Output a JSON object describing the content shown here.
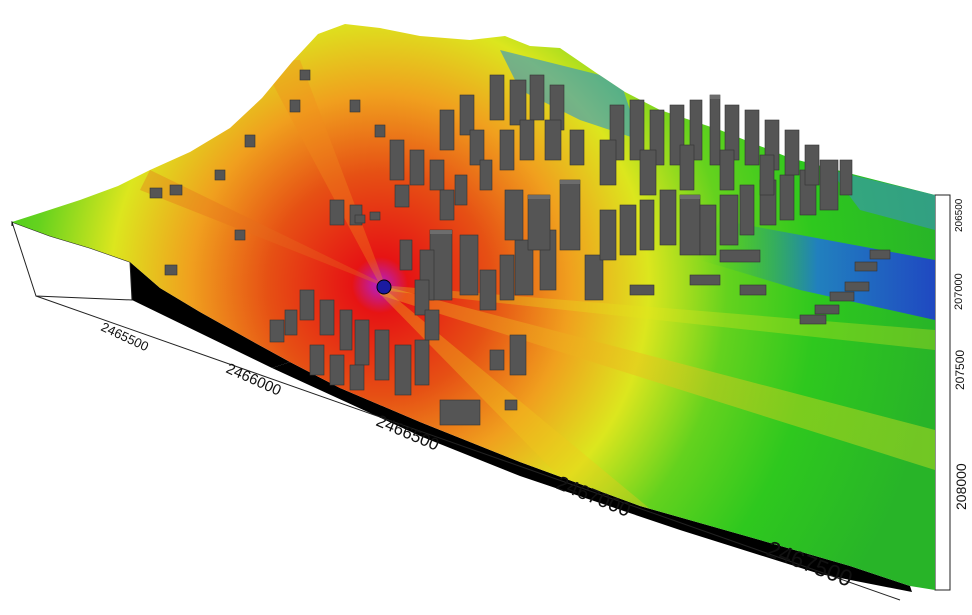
{
  "x_axis": {
    "tick_labels": [
      "2465500",
      "2466000",
      "2466500",
      "2467000",
      "2467500"
    ]
  },
  "y_axis": {
    "tick_labels": [
      "206500",
      "207000",
      "207500",
      "208000"
    ]
  },
  "colors": {
    "low": "#1e3cd2",
    "mid_low": "#2ec81e",
    "mid": "#e6e61e",
    "mid_high": "#f0961e",
    "high": "#e61414",
    "peak": "#b41ecc",
    "building": "#555555",
    "base_side": "#000000"
  }
}
